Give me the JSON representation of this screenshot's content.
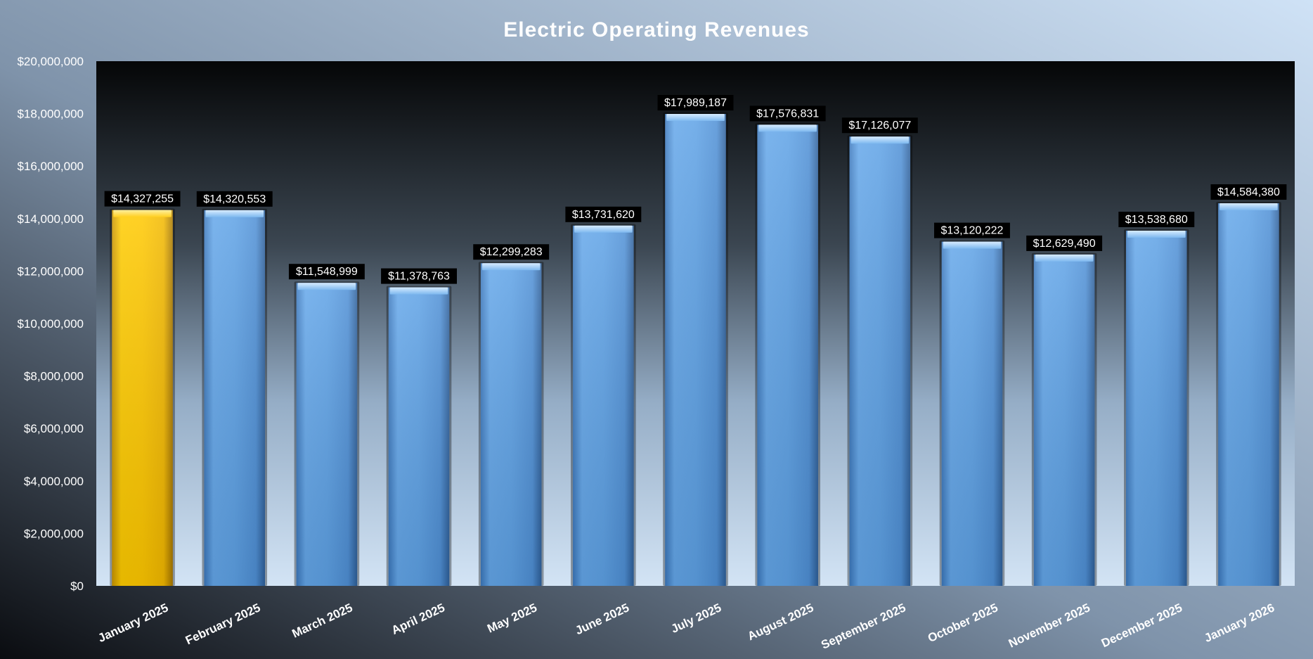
{
  "chart_data": {
    "type": "bar",
    "title": "Electric Operating Revenues",
    "xlabel": "",
    "ylabel": "",
    "categories": [
      "January 2025",
      "February 2025",
      "March 2025",
      "April 2025",
      "May 2025",
      "June 2025",
      "July 2025",
      "August 2025",
      "September 2025",
      "October 2025",
      "November 2025",
      "December 2025",
      "January 2026"
    ],
    "values": [
      14327255,
      14320553,
      11548999,
      11378763,
      12299283,
      13731620,
      17989187,
      17576831,
      17126077,
      13120222,
      12629490,
      13538680,
      14584380
    ],
    "data_labels": [
      "$14,327,255",
      "$14,320,553",
      "$11,548,999",
      "$11,378,763",
      "$12,299,283",
      "$13,731,620",
      "$17,989,187",
      "$17,576,831",
      "$17,126,077",
      "$13,120,222",
      "$12,629,490",
      "$13,538,680",
      "$14,584,380"
    ],
    "ylim": [
      0,
      20000000
    ],
    "yticks": [
      0,
      2000000,
      4000000,
      6000000,
      8000000,
      10000000,
      12000000,
      14000000,
      16000000,
      18000000,
      20000000
    ],
    "ytick_labels": [
      "$0",
      "$2,000,000",
      "$4,000,000",
      "$6,000,000",
      "$8,000,000",
      "$10,000,000",
      "$12,000,000",
      "$14,000,000",
      "$16,000,000",
      "$18,000,000",
      "$20,000,000"
    ],
    "grid": false,
    "legend": "none",
    "highlight_index": 0,
    "colors": {
      "bar": "#5a9fe0",
      "bar_highlight": "#ffc800",
      "label_box": "#000000"
    }
  }
}
